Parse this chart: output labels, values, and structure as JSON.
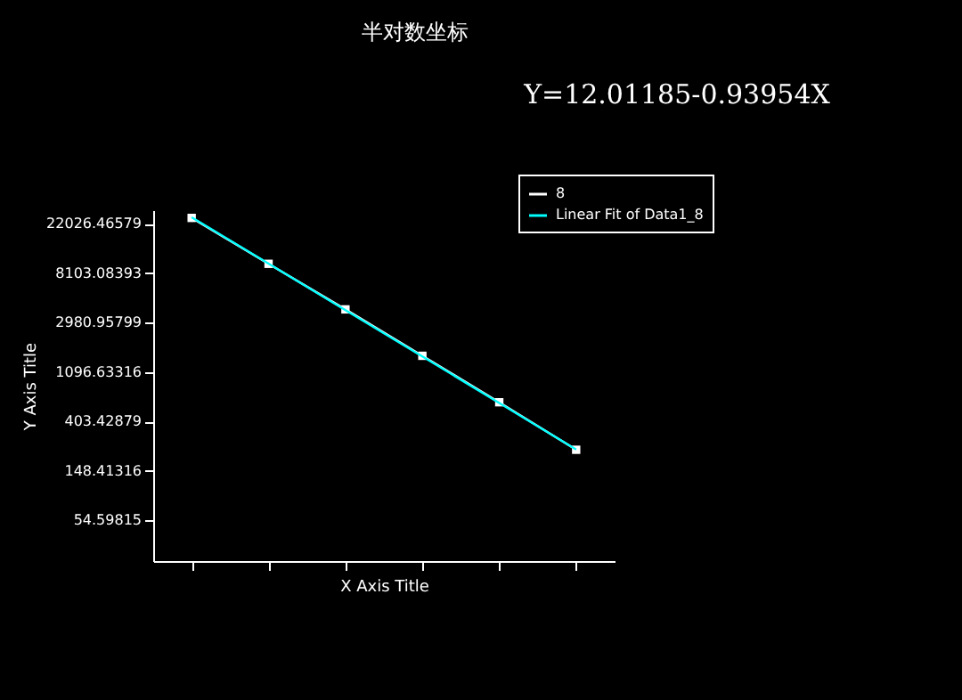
{
  "chart_data": {
    "type": "line",
    "title": "半对数坐标",
    "xlabel": "X Axis Title",
    "ylabel": "Y Axis Title",
    "annotations": [
      "Y=12.01185-0.93954X"
    ],
    "categories": [
      null,
      null,
      null,
      null,
      null,
      null
    ],
    "series": [
      {
        "name": "8",
        "marker": "square",
        "color": "#ffffff",
        "values": [
          24800,
          9800,
          3900,
          1525,
          596,
          228
        ]
      },
      {
        "name": "Linear Fit of Data1_8",
        "marker": "none",
        "color": "#00ffff",
        "values": [
          25135,
          9831,
          3846,
          1504,
          587.5,
          229.3
        ]
      }
    ],
    "log": "y",
    "ylim": [
      24,
      29000
    ],
    "yticks": [
      54.59815,
      148.41316,
      403.42879,
      1096.63316,
      2980.95799,
      8103.08393,
      22026.46579
    ],
    "grid": false,
    "legend": "top right",
    "tick_labels": "y"
  }
}
